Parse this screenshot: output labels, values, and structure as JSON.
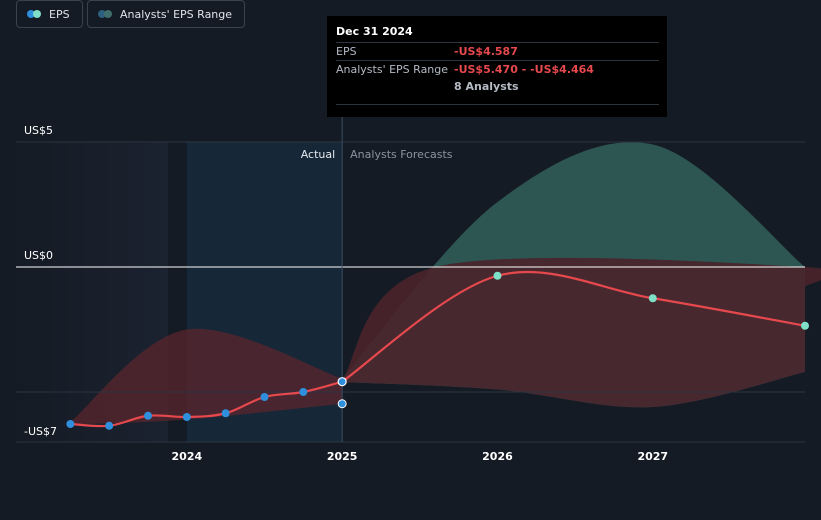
{
  "tooltip": {
    "date": "Dec 31 2024",
    "eps_label": "EPS",
    "eps_value": "-US$4.587",
    "range_label": "Analysts' EPS Range",
    "range_value": "-US$5.470 - -US$4.464",
    "analysts": "8 Analysts"
  },
  "legend": {
    "eps": "EPS",
    "range": "Analysts' EPS Range"
  },
  "colors": {
    "background": "#151b24",
    "eps_line": "#e5484d",
    "actual_point": "#2f8fdc",
    "forecast_point": "#7fe0c8",
    "range_upper": "#2f5a58",
    "range_lower": "#5a252c"
  },
  "chart_data": {
    "type": "line",
    "actual_label": "Actual",
    "forecast_label": "Analysts Forecasts",
    "y_ticks": [
      {
        "value": 5,
        "label": "US$5"
      },
      {
        "value": 0,
        "label": "US$0"
      },
      {
        "value": -7,
        "label": "-US$7"
      }
    ],
    "x_ticks": [
      {
        "value": 2024.0,
        "label": "2024"
      },
      {
        "value": 2025.0,
        "label": "2025"
      },
      {
        "value": 2026.0,
        "label": "2026"
      },
      {
        "value": 2027.0,
        "label": "2027"
      }
    ],
    "ylim": [
      -7,
      5
    ],
    "xlim": [
      2022.9,
      2027.98
    ],
    "actual_end": 2025.0,
    "eps_actual": [
      {
        "x": 2023.25,
        "y": -6.28
      },
      {
        "x": 2023.5,
        "y": -6.35
      },
      {
        "x": 2023.75,
        "y": -5.95
      },
      {
        "x": 2024.0,
        "y": -6.0
      },
      {
        "x": 2024.25,
        "y": -5.85
      },
      {
        "x": 2024.5,
        "y": -5.2
      },
      {
        "x": 2024.75,
        "y": -5.0
      },
      {
        "x": 2025.0,
        "y": -4.587
      }
    ],
    "eps_forecast": [
      {
        "x": 2025.0,
        "y": -4.587
      },
      {
        "x": 2026.0,
        "y": -0.35
      },
      {
        "x": 2027.0,
        "y": -1.25
      },
      {
        "x": 2027.98,
        "y": -2.35
      }
    ],
    "range_low_point": {
      "x": 2025.0,
      "y": -5.47
    },
    "actual_band": {
      "upper": [
        {
          "x": 2023.25,
          "y": -6.2
        },
        {
          "x": 2024.0,
          "y": -2.5
        },
        {
          "x": 2025.0,
          "y": -4.464
        }
      ],
      "lower": [
        {
          "x": 2023.25,
          "y": -6.3
        },
        {
          "x": 2024.0,
          "y": -6.1
        },
        {
          "x": 2025.0,
          "y": -5.47
        }
      ]
    },
    "forecast_band": {
      "upper": [
        {
          "x": 2025.0,
          "y": -4.464
        },
        {
          "x": 2026.0,
          "y": 2.6
        },
        {
          "x": 2027.0,
          "y": 4.9
        },
        {
          "x": 2027.98,
          "y": 0.0
        }
      ],
      "lower": [
        {
          "x": 2025.0,
          "y": -4.6
        },
        {
          "x": 2026.0,
          "y": -4.9
        },
        {
          "x": 2027.0,
          "y": -5.6
        },
        {
          "x": 2027.98,
          "y": -4.2
        }
      ],
      "eps_upper": [
        {
          "x": 2025.0,
          "y": -4.5
        },
        {
          "x": 2025.6,
          "y": 0.0
        },
        {
          "x": 2027.98,
          "y": 0.0
        },
        {
          "x": 2027.98,
          "y": -0.8
        }
      ]
    }
  }
}
